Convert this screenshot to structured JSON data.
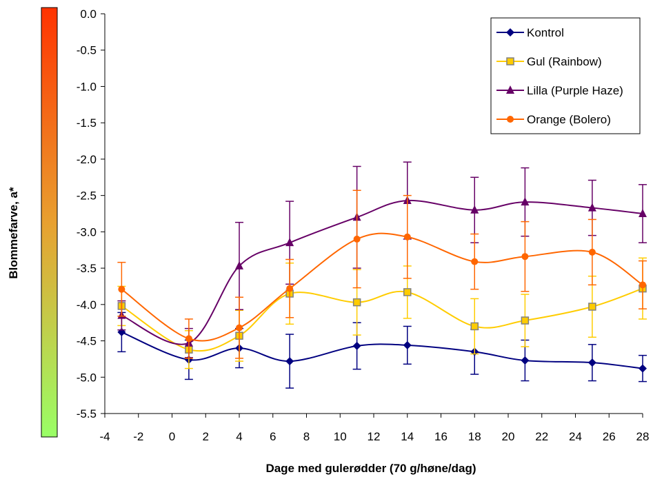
{
  "chart_data": {
    "type": "line",
    "xlabel": "Dage med gulerødder (70 g/høne/dag)",
    "ylabel": "Blommefarve, a*",
    "xlim": [
      -4,
      28
    ],
    "ylim": [
      -5.5,
      0.0
    ],
    "x_ticks": [
      "-4",
      "-2",
      "0",
      "2",
      "4",
      "6",
      "8",
      "10",
      "12",
      "14",
      "16",
      "18",
      "20",
      "22",
      "24",
      "26",
      "28"
    ],
    "y_ticks": [
      "0.0",
      "-0.5",
      "-1.0",
      "-1.5",
      "-2.0",
      "-2.5",
      "-3.0",
      "-3.5",
      "-4.0",
      "-4.5",
      "-5.0",
      "-5.5"
    ],
    "x": [
      -3,
      1,
      4,
      7,
      11,
      14,
      18,
      21,
      25,
      28
    ],
    "color_bar": {
      "top": "#ff3300",
      "mid": "#e8a030",
      "bottom": "#99ff66"
    },
    "legend_position": "top-right",
    "series": [
      {
        "name": "Kontrol",
        "color": "#000080",
        "marker": "diamond",
        "values": [
          -4.38,
          -4.76,
          -4.6,
          -4.78,
          -4.57,
          -4.56,
          -4.65,
          -4.77,
          -4.8,
          -4.88
        ],
        "err": [
          0.27,
          0.27,
          0.27,
          0.37,
          0.32,
          0.26,
          0.31,
          0.28,
          0.25,
          0.18
        ]
      },
      {
        "name": "Gul (Rainbow)",
        "color": "#ffcc00",
        "marker": "square",
        "values": [
          -4.02,
          -4.62,
          -4.43,
          -3.85,
          -3.97,
          -3.83,
          -4.3,
          -4.22,
          -4.03,
          -3.78
        ],
        "err": [
          0.27,
          0.26,
          0.35,
          0.42,
          0.45,
          0.36,
          0.38,
          0.36,
          0.42,
          0.42
        ]
      },
      {
        "name": "Lilla (Purple Haze)",
        "color": "#660066",
        "marker": "triangle",
        "values": [
          -4.15,
          -4.53,
          -3.47,
          -3.15,
          -2.8,
          -2.57,
          -2.7,
          -2.59,
          -2.67,
          -2.75
        ],
        "err": [
          0.2,
          0.2,
          0.6,
          0.57,
          0.7,
          0.53,
          0.45,
          0.47,
          0.38,
          0.4
        ]
      },
      {
        "name": "Orange (Bolero)",
        "color": "#ff6600",
        "marker": "circle",
        "values": [
          -3.79,
          -4.47,
          -4.32,
          -3.78,
          -3.1,
          -3.07,
          -3.41,
          -3.34,
          -3.28,
          -3.73
        ],
        "err": [
          0.37,
          0.27,
          0.42,
          0.4,
          0.67,
          0.57,
          0.38,
          0.48,
          0.45,
          0.33
        ]
      }
    ]
  }
}
